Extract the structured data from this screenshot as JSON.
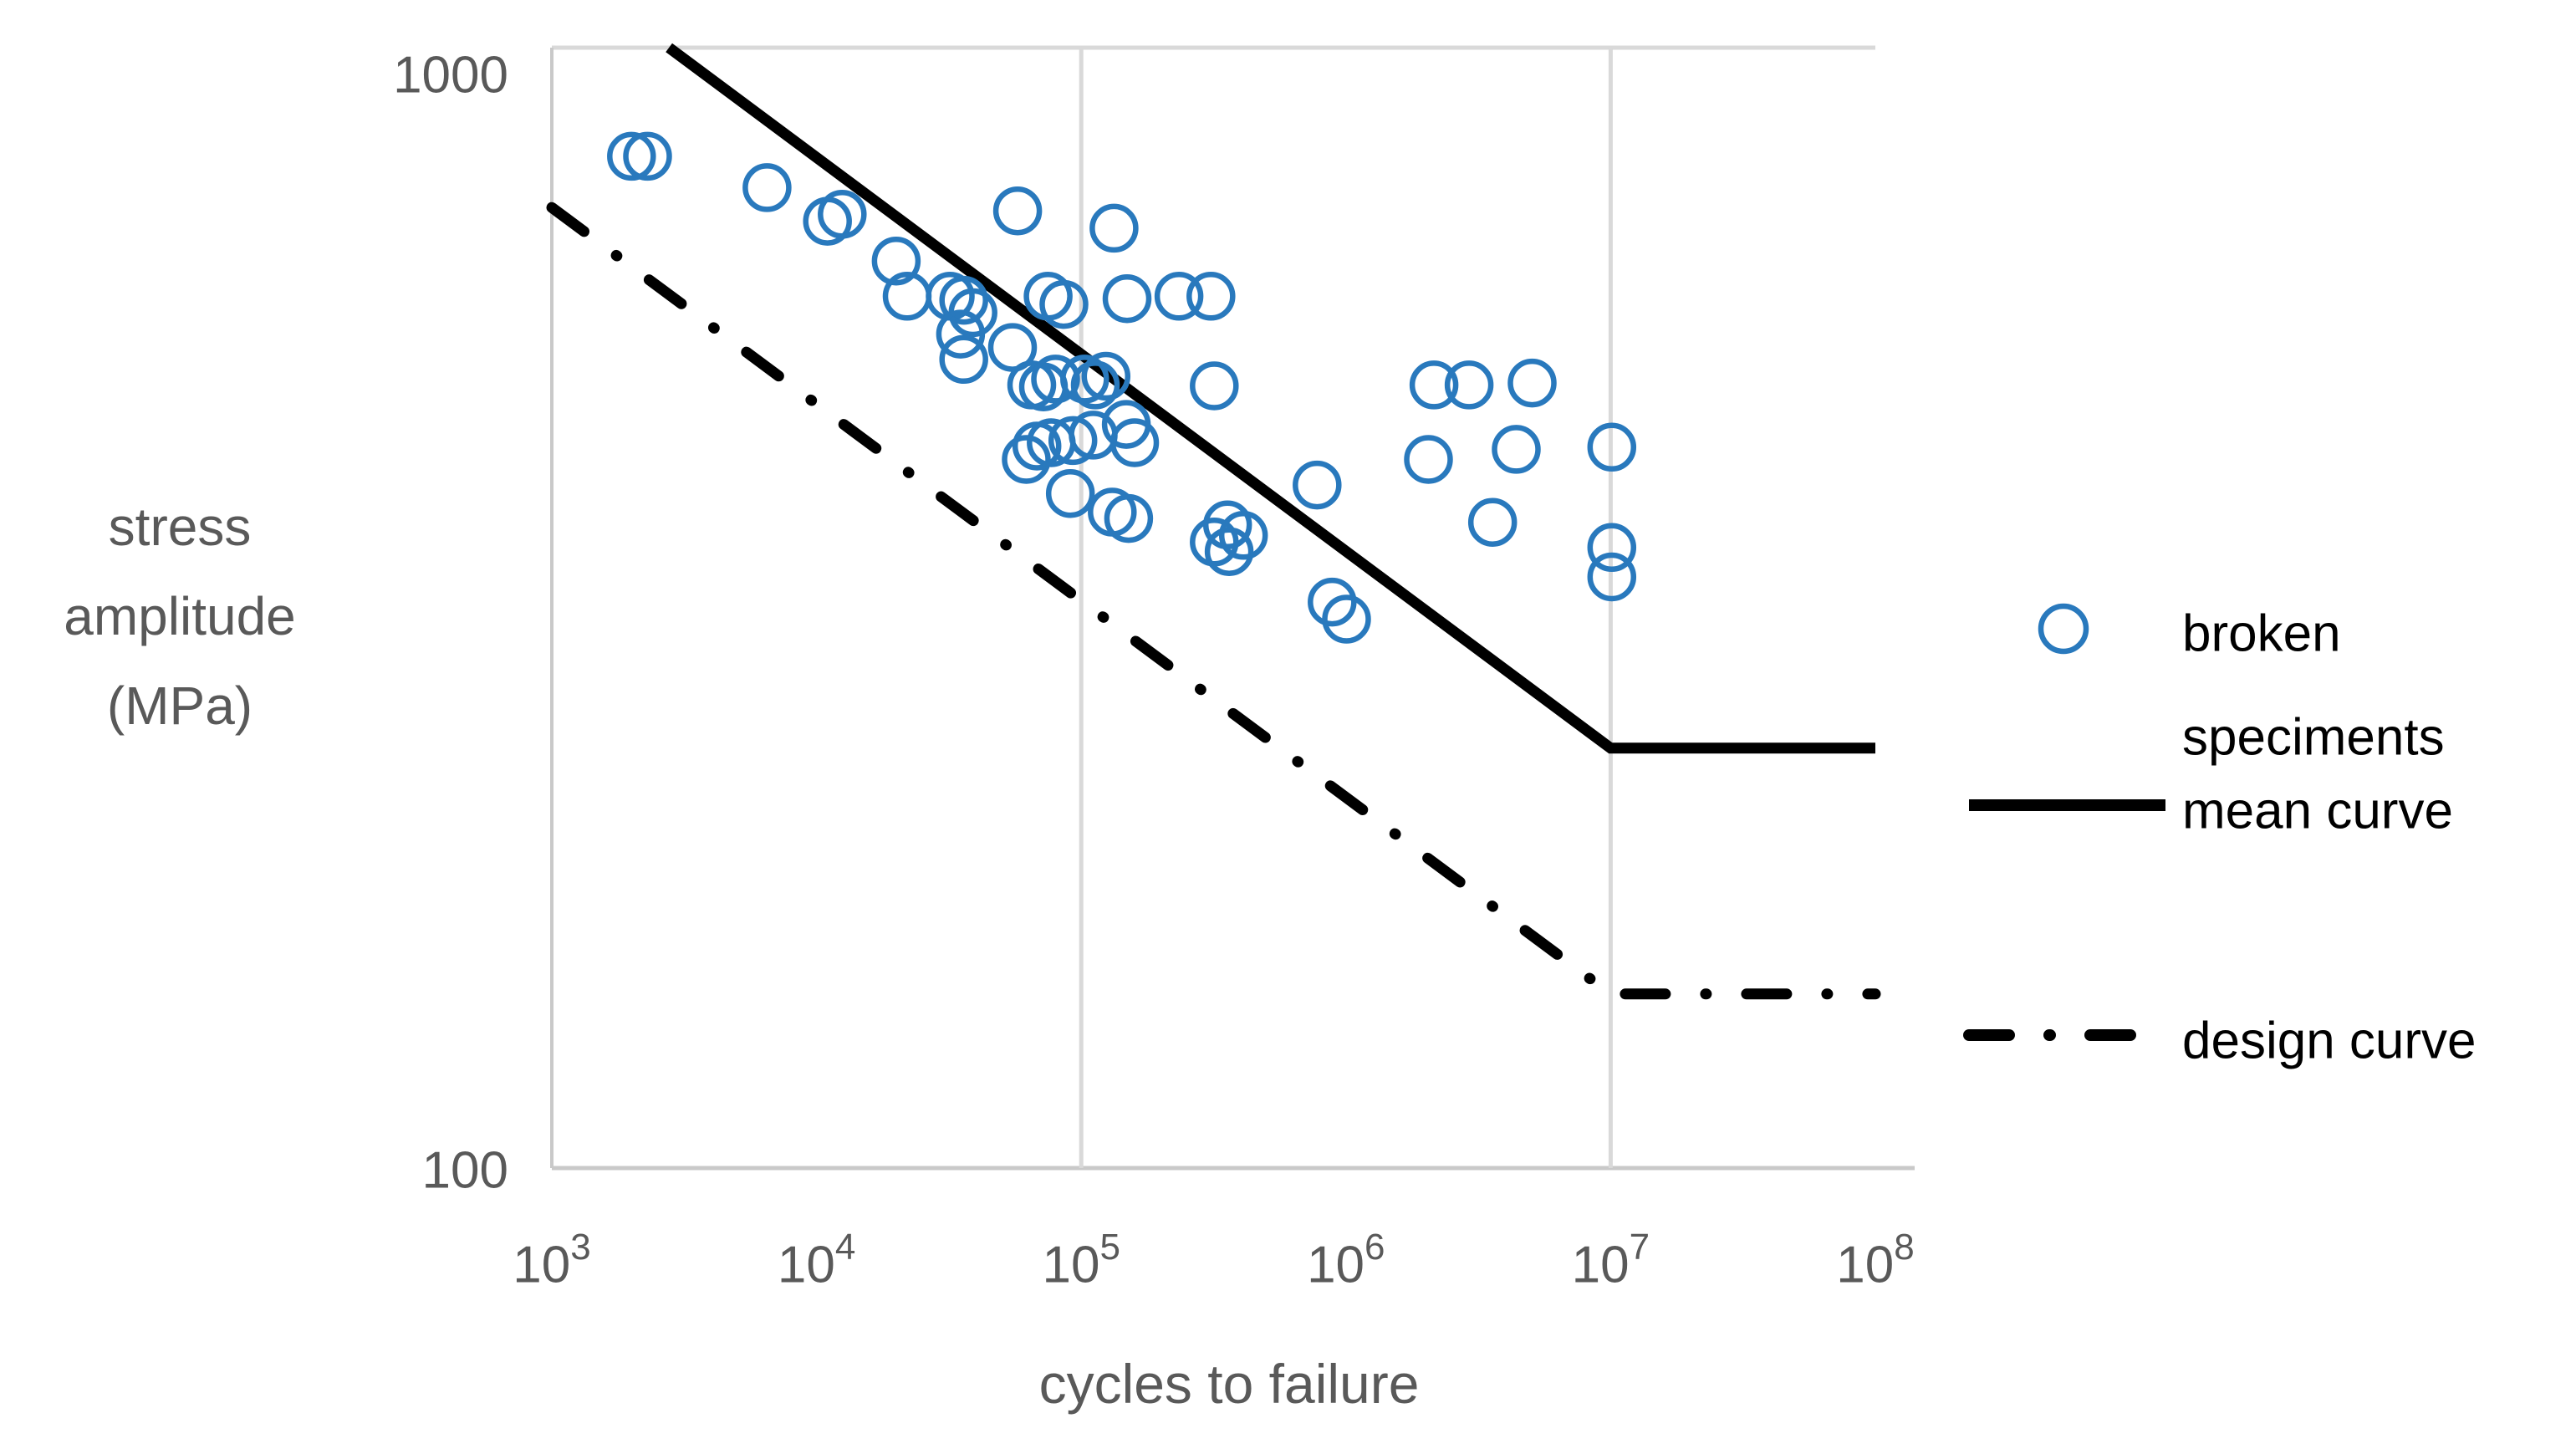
{
  "colors": {
    "marker_blue": "#2979BD",
    "curve_black": "#000000",
    "axis_text": "#595959",
    "gridline": "#D9D9D9",
    "axis_line": "#C9C9C9",
    "background": "#FFFFFF"
  },
  "y_axis": {
    "title_lines": [
      "stress",
      "amplitude",
      "(MPa)"
    ],
    "ticks": [
      "1000",
      "100"
    ]
  },
  "x_axis": {
    "title": "cycles to failure",
    "tick_mantissa": "10",
    "tick_exponents": [
      "3",
      "4",
      "5",
      "6",
      "7",
      "8"
    ]
  },
  "legend": {
    "items": [
      {
        "marker": "circle",
        "label_line1": "broken",
        "label_line2": "speciments"
      },
      {
        "marker": "solid-line",
        "label_line1": "mean curve",
        "label_line2": ""
      },
      {
        "marker": "dash-dot-line",
        "label_line1": "design curve",
        "label_line2": ""
      }
    ]
  },
  "chart_data": {
    "type": "scatter",
    "title": "",
    "xlabel": "cycles to failure",
    "ylabel": "stress amplitude (MPa)",
    "x_scale": "log",
    "y_scale": "log",
    "xlim": [
      1000,
      100000000
    ],
    "ylim": [
      100,
      1000
    ],
    "x_tick_values": [
      1000,
      10000,
      100000,
      1000000,
      10000000,
      100000000
    ],
    "y_tick_values": [
      100,
      1000
    ],
    "x_gridline_values": [
      100000,
      10000000
    ],
    "grid": "vertical-only",
    "legend_position": "right",
    "series": [
      {
        "name": "broken speciments",
        "type": "scatter",
        "marker": "open-circle",
        "color": "#2979BD",
        "points": [
          [
            2000,
            800
          ],
          [
            2300,
            800
          ],
          [
            6500,
            750
          ],
          [
            11000,
            700
          ],
          [
            12500,
            710
          ],
          [
            20000,
            645
          ],
          [
            22000,
            600
          ],
          [
            32000,
            600
          ],
          [
            36000,
            595
          ],
          [
            39000,
            580
          ],
          [
            35000,
            555
          ],
          [
            36000,
            527
          ],
          [
            55000,
            540
          ],
          [
            57500,
            715
          ],
          [
            75000,
            600
          ],
          [
            86000,
            590
          ],
          [
            62000,
            429
          ],
          [
            65000,
            500
          ],
          [
            72000,
            498
          ],
          [
            80000,
            506
          ],
          [
            68000,
            441
          ],
          [
            77000,
            444
          ],
          [
            93000,
            446
          ],
          [
            91000,
            400
          ],
          [
            103000,
            506
          ],
          [
            113000,
            500
          ],
          [
            124000,
            509
          ],
          [
            111000,
            451
          ],
          [
            131000,
            385
          ],
          [
            133000,
            690
          ],
          [
            148000,
            461
          ],
          [
            149000,
            597
          ],
          [
            151000,
            380
          ],
          [
            159000,
            444
          ],
          [
            234000,
            600
          ],
          [
            309000,
            600
          ],
          [
            318000,
            499
          ],
          [
            318000,
            362
          ],
          [
            357000,
            375
          ],
          [
            362000,
            355
          ],
          [
            410000,
            367
          ],
          [
            778000,
            407
          ],
          [
            887000,
            320
          ],
          [
            1005000,
            309
          ],
          [
            2050000,
            429
          ],
          [
            2150000,
            500
          ],
          [
            2920000,
            500
          ],
          [
            3580000,
            377
          ],
          [
            4400000,
            438
          ],
          [
            5050000,
            502
          ],
          [
            10100000,
            440
          ],
          [
            10100000,
            358
          ],
          [
            10100000,
            337
          ]
        ]
      },
      {
        "name": "mean curve",
        "type": "line",
        "style": "solid",
        "color": "#000000",
        "points": [
          [
            2770,
            1000
          ],
          [
            10000000,
            237
          ],
          [
            100000000,
            237
          ]
        ]
      },
      {
        "name": "design curve",
        "type": "line",
        "style": "dash-dot",
        "color": "#000000",
        "points": [
          [
            1000,
            720
          ],
          [
            10000000,
            143
          ],
          [
            100000000,
            143
          ]
        ]
      }
    ]
  }
}
